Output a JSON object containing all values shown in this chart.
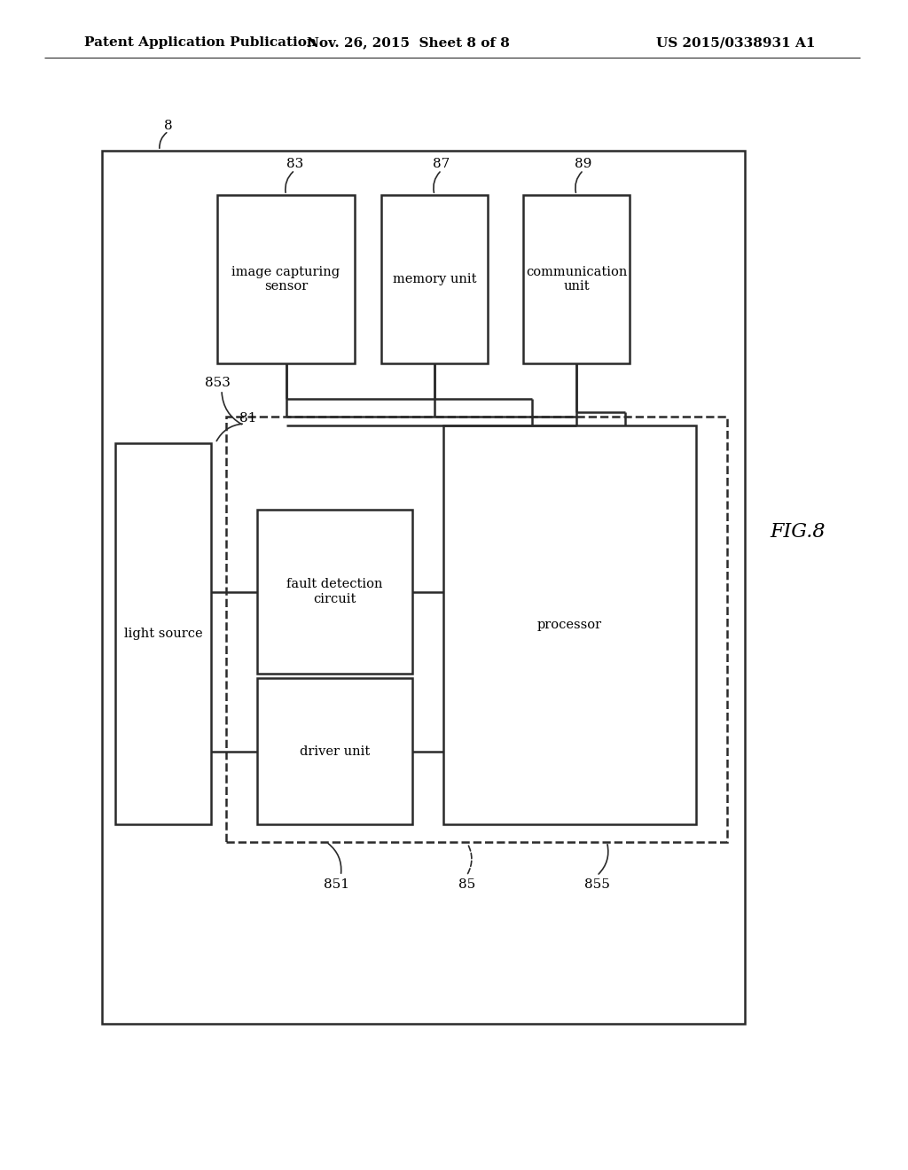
{
  "bg_color": "#ffffff",
  "line_color": "#2a2a2a",
  "header_left": "Patent Application Publication",
  "header_mid": "Nov. 26, 2015  Sheet 8 of 8",
  "header_right": "US 2015/0338931 A1",
  "fig_label": "FIG.8",
  "outer_ref": "8",
  "ref_81": "81",
  "ref_83": "83",
  "ref_87": "87",
  "ref_89": "89",
  "ref_851": "851",
  "ref_85": "85",
  "ref_853": "853",
  "ref_855": "855",
  "label_light_source": "light source",
  "label_image_sensor": "image capturing\nsensor",
  "label_memory": "memory unit",
  "label_comm": "communication\nunit",
  "label_fault": "fault detection\ncircuit",
  "label_driver": "driver unit",
  "label_processor": "processor"
}
